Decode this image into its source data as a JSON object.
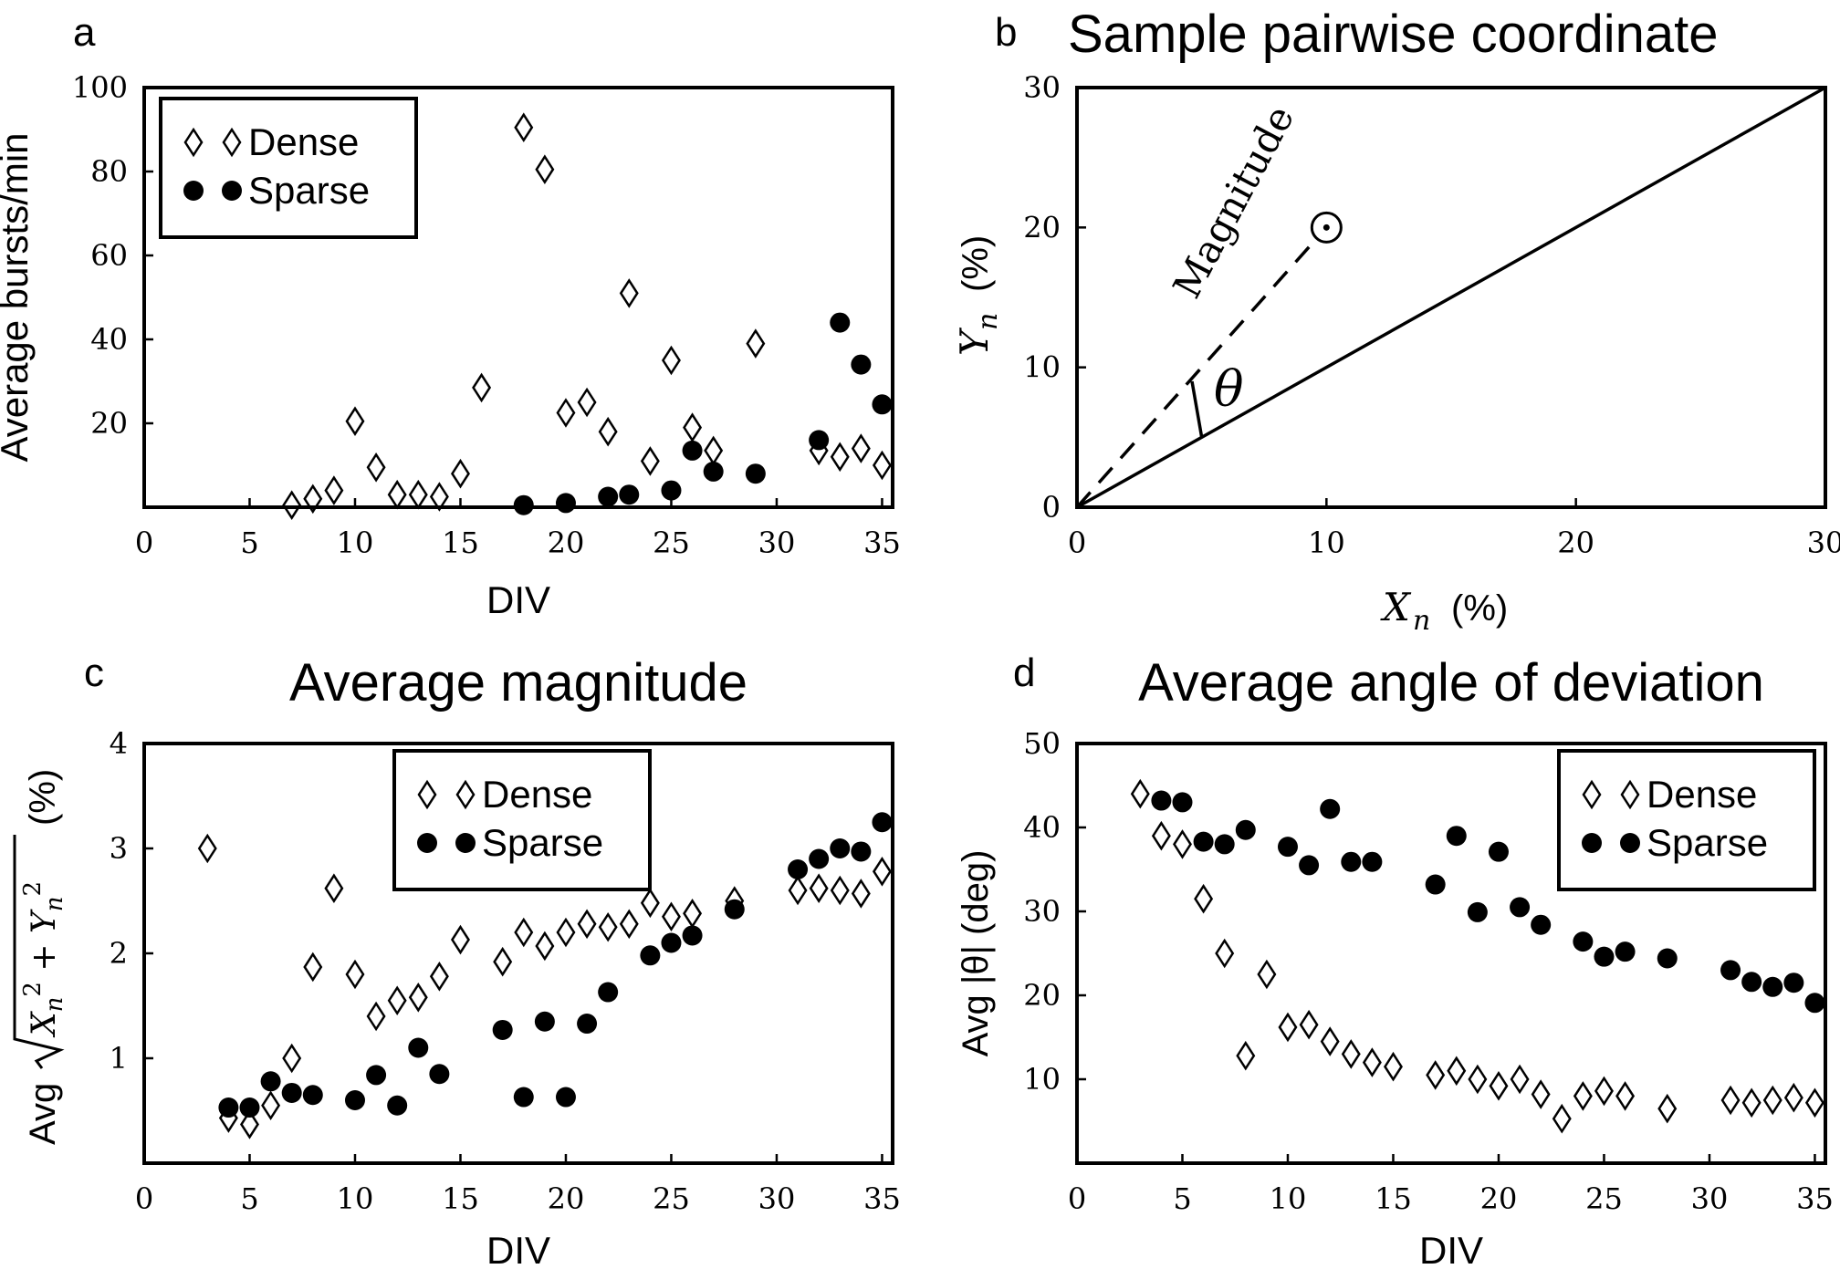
{
  "chart_data": [
    {
      "panel": "a",
      "type": "scatter",
      "title": "",
      "xlabel": "DIV",
      "ylabel": "Average bursts/min",
      "xlim": [
        0,
        35.5
      ],
      "ylim": [
        0,
        100
      ],
      "xticks": [
        0,
        5,
        10,
        15,
        20,
        25,
        30,
        35
      ],
      "yticks": [
        20,
        40,
        60,
        80,
        100
      ],
      "legend_position": "top-left",
      "series": [
        {
          "name": "Dense",
          "marker": "diamond",
          "x": [
            7,
            8,
            9,
            10,
            11,
            12,
            13,
            14,
            15,
            16,
            18,
            19,
            20,
            21,
            22,
            23,
            24,
            25,
            26,
            27,
            29,
            32,
            33,
            34,
            35
          ],
          "y": [
            0.5,
            2,
            4,
            20.5,
            9.5,
            3,
            3,
            2.5,
            8,
            28.5,
            90.5,
            80.5,
            22.5,
            25,
            18,
            51,
            11,
            35,
            19,
            13.5,
            39,
            13.5,
            12,
            14,
            10
          ]
        },
        {
          "name": "Sparse",
          "marker": "circle",
          "x": [
            18,
            20,
            22,
            23,
            25,
            26,
            27,
            29,
            32,
            33,
            34,
            35
          ],
          "y": [
            0.5,
            1,
            2.5,
            3,
            4,
            13.5,
            8.5,
            8,
            16,
            44,
            34,
            24.5
          ]
        }
      ]
    },
    {
      "panel": "b",
      "type": "line",
      "title": "Sample pairwise coordinate",
      "xlabel": "(%)",
      "ylabel": "(%)",
      "xlabel_symbol": "X",
      "xlabel_sub": "n",
      "ylabel_symbol": "Y",
      "ylabel_sub": "n",
      "xlim": [
        0,
        30
      ],
      "ylim": [
        0,
        30
      ],
      "xticks": [
        0,
        10,
        20,
        30
      ],
      "yticks": [
        0,
        10,
        20,
        30
      ],
      "diagonal": {
        "x": [
          0,
          30
        ],
        "y": [
          0,
          30
        ]
      },
      "magnitude_line": {
        "x": [
          0,
          10
        ],
        "y": [
          0,
          20
        ]
      },
      "point": {
        "x": 10,
        "y": 20
      },
      "annotations": {
        "magnitude": "Magnitude",
        "angle": "θ"
      }
    },
    {
      "panel": "c",
      "type": "scatter",
      "title": "Average magnitude",
      "xlabel": "DIV",
      "ylabel": "Avg √(Xn² + Yn²) (%)",
      "ylabel_prefix": "Avg",
      "ylabel_suffix": "(%)",
      "xlim": [
        0,
        35.5
      ],
      "ylim": [
        0,
        4
      ],
      "xticks": [
        0,
        5,
        10,
        15,
        20,
        25,
        30,
        35
      ],
      "yticks": [
        1,
        2,
        3,
        4
      ],
      "legend_position": "top-right",
      "series": [
        {
          "name": "Dense",
          "marker": "diamond",
          "x": [
            3,
            4,
            5,
            6,
            7,
            8,
            9,
            10,
            11,
            12,
            13,
            14,
            15,
            17,
            18,
            19,
            20,
            21,
            22,
            23,
            24,
            25,
            26,
            28,
            31,
            32,
            33,
            34,
            35
          ],
          "y": [
            3.0,
            0.43,
            0.37,
            0.55,
            1.0,
            1.87,
            2.62,
            1.8,
            1.4,
            1.55,
            1.58,
            1.78,
            2.13,
            1.92,
            2.2,
            2.07,
            2.2,
            2.28,
            2.25,
            2.28,
            2.48,
            2.35,
            2.38,
            2.5,
            2.6,
            2.62,
            2.6,
            2.57,
            2.78
          ]
        },
        {
          "name": "Sparse",
          "marker": "circle",
          "x": [
            4,
            5,
            6,
            7,
            8,
            10,
            11,
            12,
            13,
            14,
            17,
            18,
            19,
            20,
            21,
            22,
            24,
            25,
            26,
            28,
            31,
            32,
            33,
            34,
            35
          ],
          "y": [
            0.53,
            0.53,
            0.78,
            0.67,
            0.65,
            0.6,
            0.84,
            0.55,
            1.1,
            0.85,
            1.27,
            0.63,
            1.35,
            0.63,
            1.33,
            1.63,
            1.98,
            2.1,
            2.17,
            2.42,
            2.8,
            2.9,
            3.0,
            2.97,
            3.25
          ]
        }
      ]
    },
    {
      "panel": "d",
      "type": "scatter",
      "title": "Average angle of deviation",
      "xlabel": "DIV",
      "ylabel": "Avg |θ| (deg)",
      "xlim": [
        0,
        35.5
      ],
      "ylim": [
        0,
        50
      ],
      "xticks": [
        0,
        5,
        10,
        15,
        20,
        25,
        30,
        35
      ],
      "yticks": [
        10,
        20,
        30,
        40,
        50
      ],
      "legend_position": "top-right",
      "series": [
        {
          "name": "Dense",
          "marker": "diamond",
          "x": [
            3,
            4,
            5,
            6,
            7,
            8,
            9,
            10,
            11,
            12,
            13,
            14,
            15,
            17,
            18,
            19,
            20,
            21,
            22,
            23,
            24,
            25,
            26,
            28,
            31,
            32,
            33,
            34,
            35
          ],
          "y": [
            44,
            39,
            38,
            31.5,
            25,
            12.8,
            22.5,
            16.2,
            16.5,
            14.5,
            13,
            12,
            11.5,
            10.5,
            11,
            10,
            9.2,
            10,
            8.2,
            5.3,
            8,
            8.6,
            8,
            6.5,
            7.5,
            7.2,
            7.5,
            7.8,
            7.2
          ]
        },
        {
          "name": "Sparse",
          "marker": "circle",
          "x": [
            4,
            5,
            6,
            7,
            8,
            10,
            11,
            12,
            13,
            14,
            17,
            18,
            19,
            20,
            21,
            22,
            24,
            25,
            26,
            28,
            31,
            32,
            33,
            34,
            35
          ],
          "y": [
            43.2,
            43,
            38.3,
            38,
            39.7,
            37.7,
            35.5,
            42.2,
            35.9,
            35.9,
            33.2,
            39,
            29.9,
            37.1,
            30.5,
            28.4,
            26.4,
            24.6,
            25.2,
            24.4,
            23,
            21.6,
            21,
            21.5,
            19.1
          ]
        }
      ]
    }
  ],
  "panels": {
    "a": {
      "letter": "a"
    },
    "b": {
      "letter": "b"
    },
    "c": {
      "letter": "c"
    },
    "d": {
      "letter": "d"
    }
  }
}
